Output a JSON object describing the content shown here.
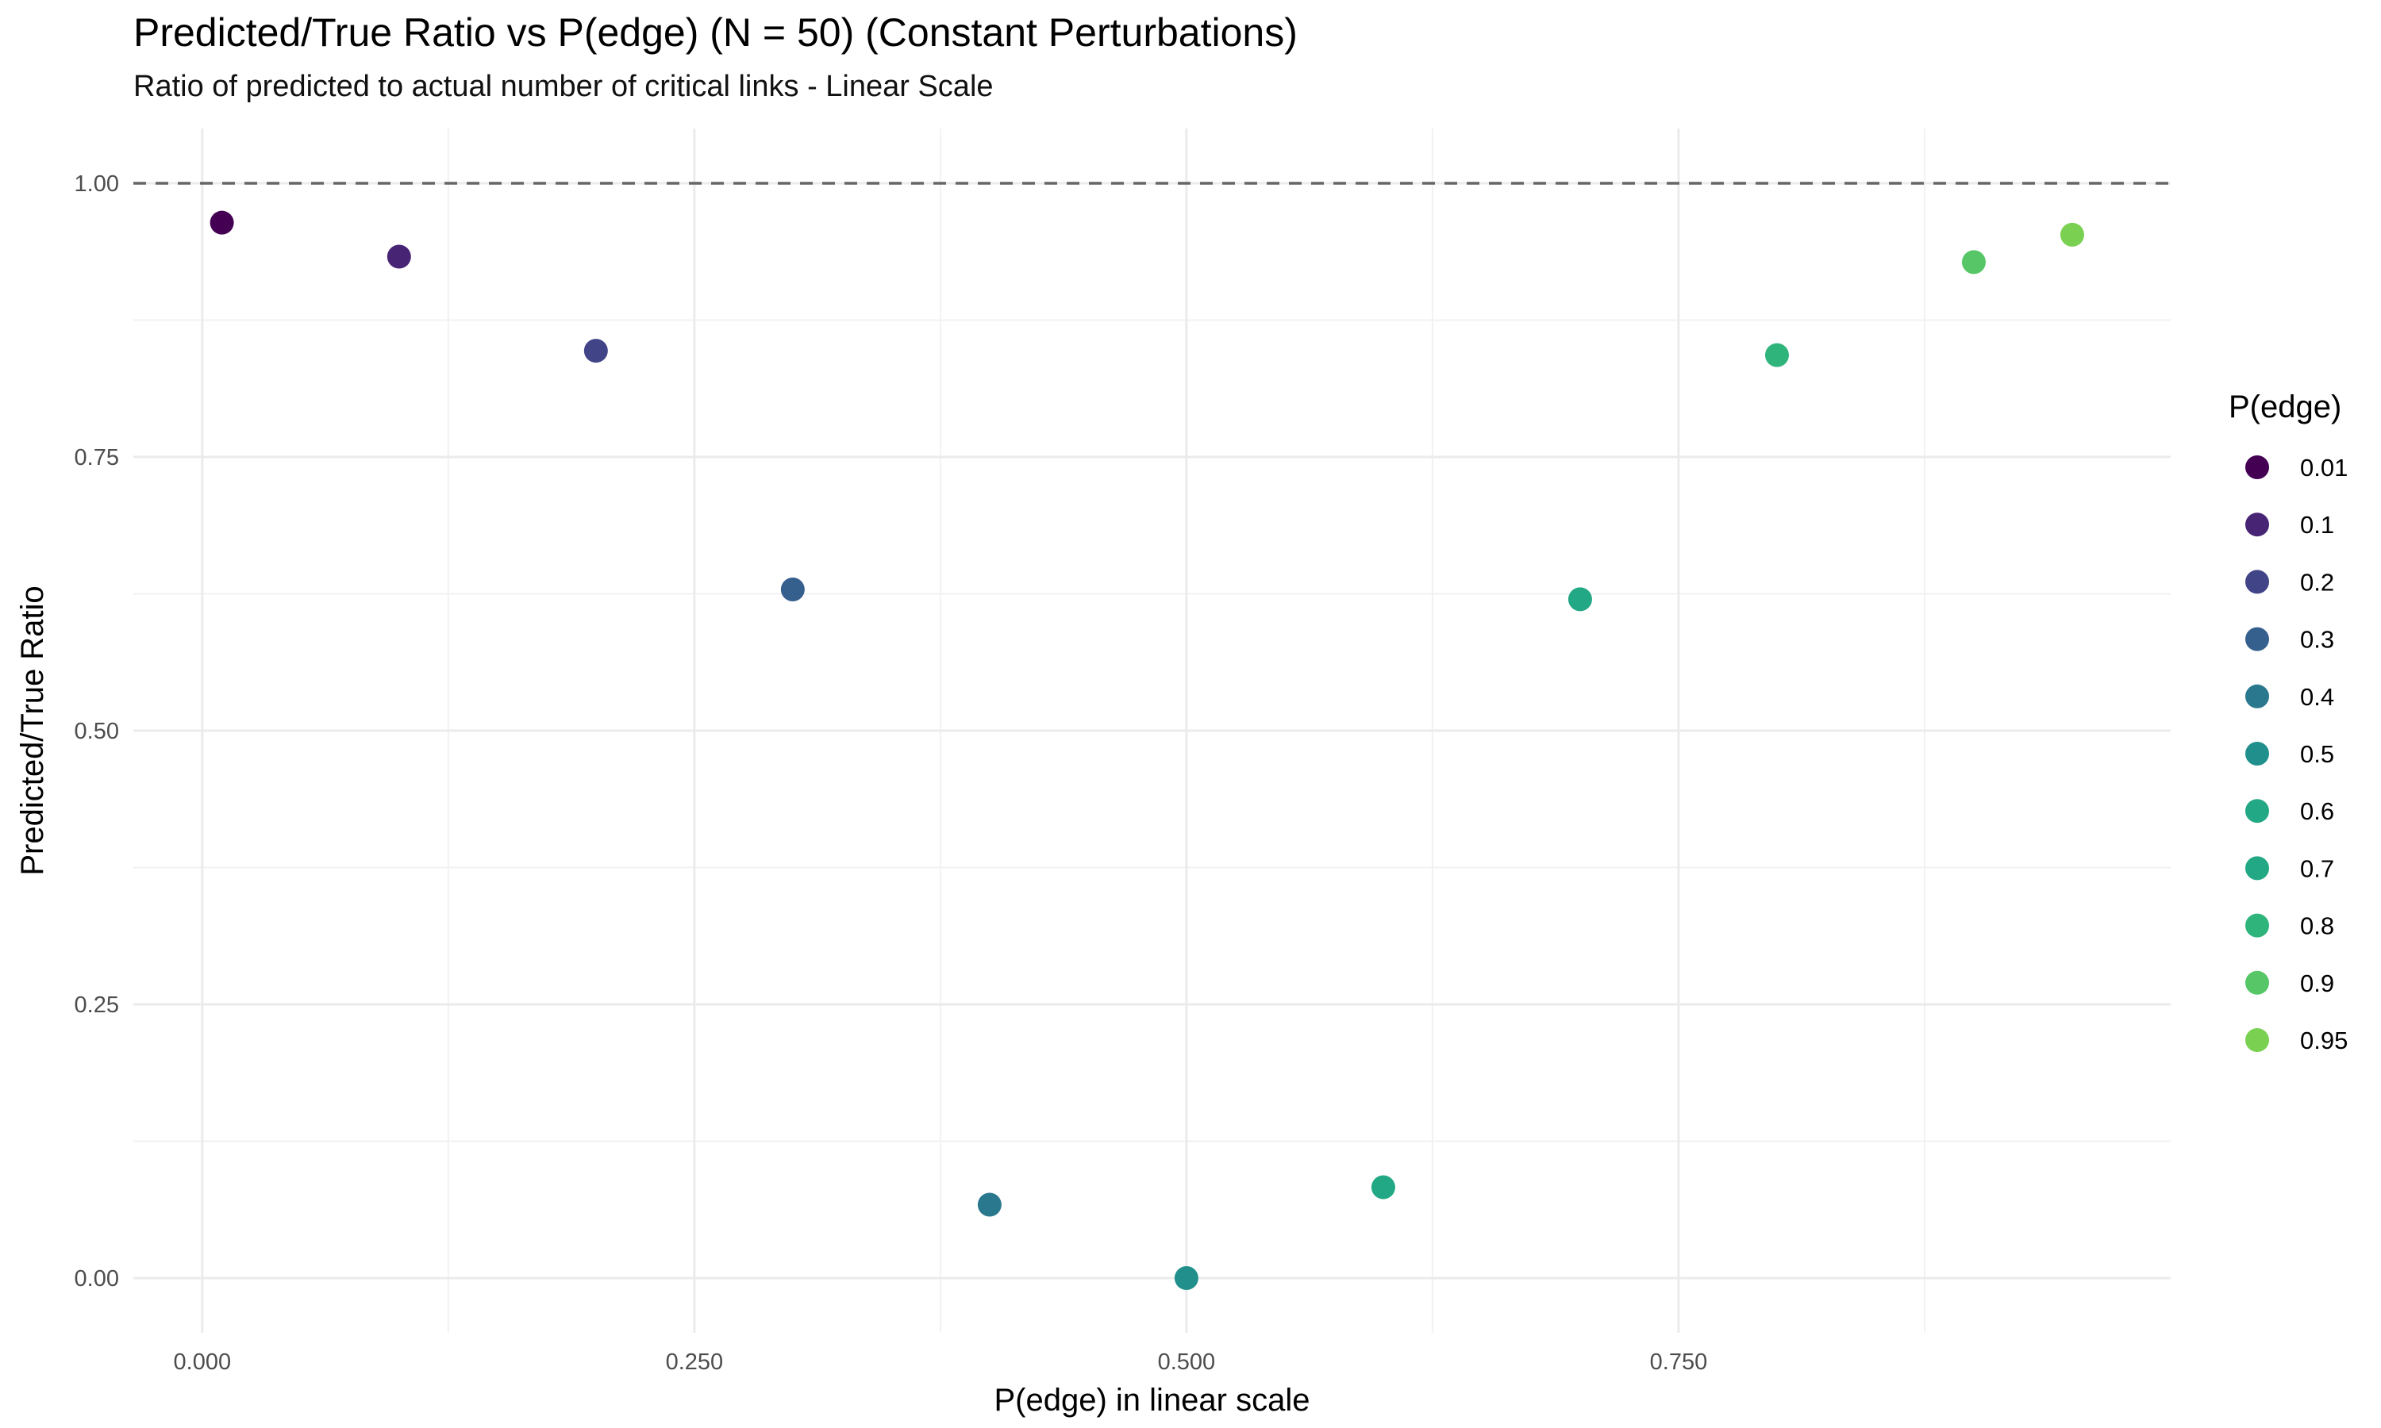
{
  "chart_data": {
    "type": "scatter",
    "title": "Predicted/True Ratio vs P(edge) (N = 50) (Constant Perturbations)",
    "subtitle": "Ratio of predicted to actual number of critical links - Linear Scale",
    "xlabel": "P(edge) in linear scale",
    "ylabel": "Predicted/True Ratio",
    "xlim": [
      -0.035,
      1.0
    ],
    "ylim": [
      -0.05,
      1.05
    ],
    "x_ticks": [
      0.0,
      0.25,
      0.5,
      0.75
    ],
    "x_tick_labels": [
      "0.000",
      "0.250",
      "0.500",
      "0.750"
    ],
    "y_ticks": [
      0.0,
      0.25,
      0.5,
      0.75,
      1.0
    ],
    "y_tick_labels": [
      "0.00",
      "0.25",
      "0.50",
      "0.75",
      "1.00"
    ],
    "reference_line": {
      "y": 1.0,
      "style": "dashed",
      "color": "#666666"
    },
    "grid": true,
    "legend": {
      "title": "P(edge)",
      "position": "right"
    },
    "points": [
      {
        "x": 0.01,
        "y": 0.964,
        "label": "0.01",
        "color": "#440154"
      },
      {
        "x": 0.1,
        "y": 0.933,
        "label": "0.1",
        "color": "#482475"
      },
      {
        "x": 0.2,
        "y": 0.847,
        "label": "0.2",
        "color": "#414487"
      },
      {
        "x": 0.3,
        "y": 0.629,
        "label": "0.3",
        "color": "#355F8D"
      },
      {
        "x": 0.4,
        "y": 0.067,
        "label": "0.4",
        "color": "#2A788E"
      },
      {
        "x": 0.5,
        "y": 0.0,
        "label": "0.5",
        "color": "#21908C"
      },
      {
        "x": 0.6,
        "y": 0.083,
        "label": "0.6",
        "color": "#22A884"
      },
      {
        "x": 0.7,
        "y": 0.62,
        "label": "0.7",
        "color": "#22A884"
      },
      {
        "x": 0.8,
        "y": 0.843,
        "label": "0.8",
        "color": "#2FB47C"
      },
      {
        "x": 0.9,
        "y": 0.928,
        "label": "0.9",
        "color": "#56C667"
      },
      {
        "x": 0.95,
        "y": 0.953,
        "label": "0.95",
        "color": "#7AD151"
      }
    ],
    "legend_colors": [
      "#440154",
      "#482475",
      "#414487",
      "#355F8D",
      "#2A788E",
      "#21908C",
      "#22A884",
      "#22A884",
      "#2FB47C",
      "#56C667",
      "#7AD151"
    ]
  }
}
